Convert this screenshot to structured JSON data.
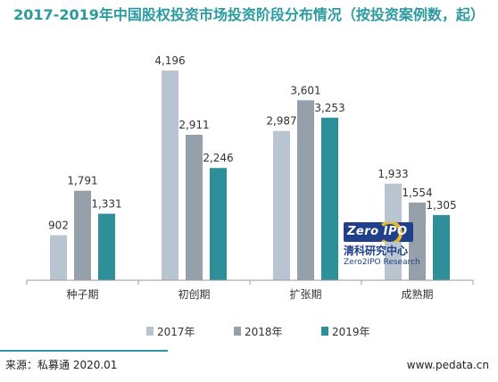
{
  "chart_data": {
    "type": "bar",
    "title": "2017-2019年中国股权投资市场投资阶段分布情况（按投资案例数，起）",
    "categories": [
      "种子期",
      "初创期",
      "扩张期",
      "成熟期"
    ],
    "series": [
      {
        "name": "2017年",
        "color": "#b8c4cf",
        "values": [
          902,
          4196,
          2987,
          1933
        ]
      },
      {
        "name": "2018年",
        "color": "#95a0ab",
        "values": [
          1791,
          2911,
          3601,
          1554
        ]
      },
      {
        "name": "2019年",
        "color": "#2d8f99",
        "values": [
          1331,
          2246,
          3253,
          1305
        ]
      }
    ],
    "ylim": [
      0,
      4500
    ],
    "grid": false,
    "legend": "bottom"
  },
  "watermark": {
    "badge": "Zero IPO",
    "cn": "清科研究中心",
    "en": "Zero2IPO Research"
  },
  "footer": {
    "source": "来源：私募通 2020.01",
    "site": "www.pedata.cn"
  }
}
